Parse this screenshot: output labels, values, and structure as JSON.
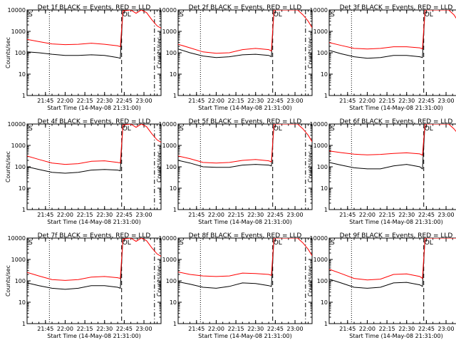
{
  "figure": {
    "panel_title_suffix": " BLACK = Events, RED = LLD",
    "xlabel": "Start Time (14-May-08 21:31:00)",
    "ylabel": "Counts/sec",
    "start_time": "21:31:00",
    "end_time": "23:13:00",
    "xticks": [
      "21:45",
      "22:00",
      "22:15",
      "22:30",
      "22:45",
      "23:00"
    ],
    "yticks": [
      "1",
      "10",
      "100",
      "1000",
      "10000"
    ],
    "markers": {
      "dotted_line_time": "21:48:00",
      "dashed_line_time": "22:43:00",
      "dashdot_line_time": "23:08:00",
      "label_left": "S",
      "label_mid": "OL"
    },
    "colors": {
      "events": "#000000",
      "lld": "#ff0000",
      "axes": "#000000"
    }
  },
  "chart_data": [
    {
      "type": "line",
      "title": "Det 1f",
      "x": [
        "21:31",
        "21:40",
        "21:50",
        "22:00",
        "22:10",
        "22:20",
        "22:30",
        "22:40",
        "22:42",
        "22:44",
        "22:50",
        "22:54",
        "22:58",
        "23:02",
        "23:06",
        "23:10",
        "23:13"
      ],
      "series": [
        {
          "name": "BLACK = Events",
          "color": "#000000",
          "values": [
            110,
            100,
            85,
            75,
            75,
            80,
            75,
            60,
            55,
            10000,
            10000,
            10000,
            10000,
            10000,
            10000,
            10000,
            10000
          ]
        },
        {
          "name": "RED = LLD",
          "color": "#ff0000",
          "values": [
            420,
            330,
            260,
            240,
            250,
            280,
            250,
            210,
            190,
            9000,
            10000,
            7000,
            10000,
            7500,
            3500,
            1800,
            1400
          ]
        }
      ],
      "yscale": "log",
      "ylim": [
        1,
        10000
      ]
    },
    {
      "type": "line",
      "title": "Det 2f",
      "x": [
        "21:31",
        "21:40",
        "21:50",
        "22:00",
        "22:10",
        "22:20",
        "22:30",
        "22:40",
        "22:42",
        "22:44",
        "22:50",
        "22:54",
        "22:58",
        "23:02",
        "23:06",
        "23:10",
        "23:13"
      ],
      "series": [
        {
          "name": "BLACK = Events",
          "color": "#000000",
          "values": [
            150,
            100,
            70,
            60,
            65,
            80,
            85,
            75,
            65,
            10000,
            10000,
            10000,
            10000,
            10000,
            10000,
            10000,
            10000
          ]
        },
        {
          "name": "RED = LLD",
          "color": "#ff0000",
          "values": [
            250,
            170,
            110,
            95,
            100,
            140,
            160,
            140,
            120,
            10000,
            10000,
            10000,
            10000,
            10000,
            6000,
            3000,
            1500
          ]
        }
      ],
      "yscale": "log",
      "ylim": [
        1,
        10000
      ]
    },
    {
      "type": "line",
      "title": "Det 3f",
      "x": [
        "21:31",
        "21:40",
        "21:50",
        "22:00",
        "22:10",
        "22:20",
        "22:30",
        "22:40",
        "22:42",
        "22:44",
        "22:50",
        "22:54",
        "22:58",
        "23:02",
        "23:06",
        "23:10",
        "23:13"
      ],
      "series": [
        {
          "name": "BLACK = Events",
          "color": "#000000",
          "values": [
            130,
            90,
            65,
            55,
            60,
            75,
            75,
            65,
            60,
            10000,
            10000,
            10000,
            10000,
            10000,
            10000,
            10000,
            10000
          ]
        },
        {
          "name": "RED = LLD",
          "color": "#ff0000",
          "values": [
            300,
            220,
            160,
            150,
            160,
            190,
            190,
            170,
            150,
            10000,
            10000,
            10000,
            10000,
            10000,
            6000,
            2500,
            1500
          ]
        }
      ],
      "yscale": "log",
      "ylim": [
        1,
        10000
      ]
    },
    {
      "type": "line",
      "title": "Det 4f",
      "x": [
        "21:31",
        "21:40",
        "21:50",
        "22:00",
        "22:10",
        "22:20",
        "22:30",
        "22:40",
        "22:42",
        "22:44",
        "22:50",
        "22:54",
        "22:58",
        "23:02",
        "23:06",
        "23:10",
        "23:13"
      ],
      "series": [
        {
          "name": "BLACK = Events",
          "color": "#000000",
          "values": [
            100,
            75,
            55,
            50,
            55,
            70,
            75,
            70,
            65,
            10000,
            10000,
            10000,
            10000,
            10000,
            10000,
            10000,
            10000
          ]
        },
        {
          "name": "RED = LLD",
          "color": "#ff0000",
          "values": [
            320,
            220,
            150,
            130,
            140,
            180,
            190,
            160,
            150,
            9000,
            10000,
            7000,
            10000,
            7500,
            3500,
            1800,
            1400
          ]
        }
      ],
      "yscale": "log",
      "ylim": [
        1,
        10000
      ]
    },
    {
      "type": "line",
      "title": "Det 5f",
      "x": [
        "21:31",
        "21:40",
        "21:50",
        "22:00",
        "22:10",
        "22:20",
        "22:30",
        "22:40",
        "22:42",
        "22:44",
        "22:50",
        "22:54",
        "22:58",
        "23:02",
        "23:06",
        "23:10",
        "23:13"
      ],
      "series": [
        {
          "name": "BLACK = Events",
          "color": "#000000",
          "values": [
            200,
            150,
            100,
            95,
            95,
            120,
            130,
            120,
            110,
            10000,
            10000,
            10000,
            10000,
            10000,
            10000,
            10000,
            10000
          ]
        },
        {
          "name": "RED = LLD",
          "color": "#ff0000",
          "values": [
            320,
            240,
            160,
            150,
            160,
            200,
            220,
            190,
            170,
            10000,
            10000,
            10000,
            10000,
            10000,
            6000,
            3000,
            1500
          ]
        }
      ],
      "yscale": "log",
      "ylim": [
        1,
        10000
      ]
    },
    {
      "type": "line",
      "title": "Det 6f",
      "x": [
        "21:31",
        "21:40",
        "21:50",
        "22:00",
        "22:10",
        "22:20",
        "22:30",
        "22:40",
        "22:42",
        "22:44",
        "22:50",
        "22:54",
        "22:58",
        "23:02",
        "23:06",
        "23:10",
        "23:13"
      ],
      "series": [
        {
          "name": "BLACK = Events",
          "color": "#000000",
          "values": [
            160,
            120,
            90,
            80,
            80,
            110,
            130,
            100,
            80,
            10000,
            10000,
            10000,
            10000,
            10000,
            10000,
            10000,
            10000
          ]
        },
        {
          "name": "RED = LLD",
          "color": "#ff0000",
          "values": [
            550,
            460,
            390,
            360,
            380,
            420,
            450,
            400,
            350,
            10000,
            10000,
            10000,
            10000,
            10000,
            6000,
            3000,
            1500
          ]
        }
      ],
      "yscale": "log",
      "ylim": [
        1,
        10000
      ]
    },
    {
      "type": "line",
      "title": "Det 7f",
      "x": [
        "21:31",
        "21:40",
        "21:50",
        "22:00",
        "22:10",
        "22:20",
        "22:30",
        "22:40",
        "22:42",
        "22:44",
        "22:50",
        "22:54",
        "22:58",
        "23:02",
        "23:06",
        "23:10",
        "23:13"
      ],
      "series": [
        {
          "name": "BLACK = Events",
          "color": "#000000",
          "values": [
            80,
            60,
            45,
            40,
            45,
            60,
            60,
            50,
            45,
            10000,
            10000,
            10000,
            10000,
            10000,
            10000,
            10000,
            10000
          ]
        },
        {
          "name": "RED = LLD",
          "color": "#ff0000",
          "values": [
            250,
            170,
            115,
            105,
            115,
            150,
            160,
            140,
            130,
            9000,
            10000,
            7000,
            10000,
            7500,
            3500,
            1800,
            1400
          ]
        }
      ],
      "yscale": "log",
      "ylim": [
        1,
        10000
      ]
    },
    {
      "type": "line",
      "title": "Det 8f",
      "x": [
        "21:31",
        "21:40",
        "21:50",
        "22:00",
        "22:10",
        "22:20",
        "22:30",
        "22:40",
        "22:42",
        "22:44",
        "22:50",
        "22:54",
        "22:58",
        "23:02",
        "23:06",
        "23:10",
        "23:13"
      ],
      "series": [
        {
          "name": "BLACK = Events",
          "color": "#000000",
          "values": [
            90,
            70,
            50,
            45,
            55,
            80,
            75,
            60,
            55,
            10000,
            10000,
            10000,
            10000,
            10000,
            10000,
            10000,
            10000
          ]
        },
        {
          "name": "RED = LLD",
          "color": "#ff0000",
          "values": [
            260,
            200,
            170,
            160,
            170,
            230,
            220,
            200,
            180,
            10000,
            10000,
            10000,
            10000,
            10000,
            6000,
            3000,
            1500
          ]
        }
      ],
      "yscale": "log",
      "ylim": [
        1,
        10000
      ]
    },
    {
      "type": "line",
      "title": "Det 9f",
      "x": [
        "21:31",
        "21:40",
        "21:50",
        "22:00",
        "22:10",
        "22:20",
        "22:30",
        "22:40",
        "22:42",
        "22:44",
        "22:50",
        "22:54",
        "22:58",
        "23:02",
        "23:06",
        "23:10",
        "23:13"
      ],
      "series": [
        {
          "name": "BLACK = Events",
          "color": "#000000",
          "values": [
            120,
            80,
            50,
            45,
            50,
            80,
            85,
            65,
            55,
            10000,
            10000,
            10000,
            10000,
            10000,
            10000,
            10000,
            10000
          ]
        },
        {
          "name": "RED = LLD",
          "color": "#ff0000",
          "values": [
            350,
            220,
            130,
            110,
            120,
            200,
            210,
            160,
            130,
            10000,
            10000,
            10000,
            10000,
            10000,
            10000,
            10000,
            10000
          ]
        }
      ],
      "yscale": "log",
      "ylim": [
        1,
        10000
      ]
    }
  ]
}
